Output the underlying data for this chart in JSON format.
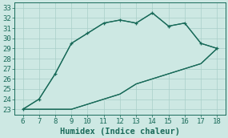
{
  "x": [
    6,
    7,
    8,
    9,
    10,
    11,
    12,
    13,
    14,
    15,
    16,
    17,
    18
  ],
  "y_upper": [
    23.0,
    24.0,
    26.5,
    29.5,
    30.5,
    31.5,
    31.8,
    31.5,
    32.5,
    31.2,
    31.5,
    29.5,
    29.0
  ],
  "y_lower": [
    23.0,
    23.0,
    23.0,
    23.0,
    23.5,
    24.0,
    24.5,
    25.5,
    26.0,
    26.5,
    27.0,
    27.5,
    29.0
  ],
  "xlim": [
    5.5,
    18.5
  ],
  "ylim": [
    22.5,
    33.5
  ],
  "xticks": [
    6,
    7,
    8,
    9,
    10,
    11,
    12,
    13,
    14,
    15,
    16,
    17,
    18
  ],
  "yticks": [
    23,
    24,
    25,
    26,
    27,
    28,
    29,
    30,
    31,
    32,
    33
  ],
  "xlabel": "Humidex (Indice chaleur)",
  "line_color": "#1a6b5a",
  "bg_color": "#cde8e3",
  "grid_color": "#a8cfc8",
  "tick_fontsize": 6.5,
  "label_fontsize": 7.5
}
